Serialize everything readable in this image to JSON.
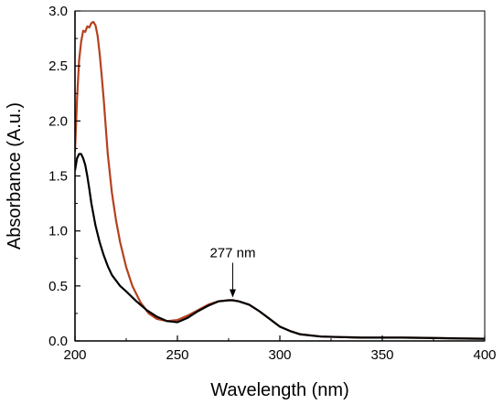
{
  "chart_data": {
    "type": "line",
    "title": "",
    "xlabel": "Wavelength (nm)",
    "ylabel": "Absorbance (A.u.)",
    "xlim": [
      200,
      400
    ],
    "ylim": [
      0.0,
      3.0
    ],
    "xticks": [
      200,
      250,
      300,
      350,
      400
    ],
    "xtick_labels": [
      "200",
      "250",
      "300",
      "350",
      "400"
    ],
    "yticks": [
      0.0,
      0.5,
      1.0,
      1.5,
      2.0,
      2.5,
      3.0
    ],
    "ytick_labels": [
      "0.0",
      "0.5",
      "1.0",
      "1.5",
      "2.0",
      "2.5",
      "3.0"
    ],
    "grid": false,
    "legend": "none",
    "annotation": {
      "text": "277 nm",
      "x": 277,
      "y": 0.37
    },
    "series": [
      {
        "color": "#b5401f",
        "x": [
          200,
          201,
          202,
          203,
          204,
          205,
          206,
          207,
          208,
          209,
          210,
          211,
          212,
          213,
          214,
          215,
          216,
          218,
          220,
          222,
          225,
          228,
          232,
          236,
          240,
          245,
          250,
          255,
          260,
          265,
          270,
          275,
          277,
          280,
          285,
          290,
          295,
          300,
          305,
          310,
          320,
          330,
          340,
          350,
          360,
          370,
          380,
          390,
          400
        ],
        "y": [
          1.72,
          2.2,
          2.55,
          2.72,
          2.82,
          2.81,
          2.86,
          2.85,
          2.89,
          2.9,
          2.87,
          2.78,
          2.62,
          2.42,
          2.2,
          1.95,
          1.7,
          1.35,
          1.1,
          0.9,
          0.67,
          0.5,
          0.35,
          0.25,
          0.2,
          0.18,
          0.19,
          0.23,
          0.28,
          0.33,
          0.36,
          0.37,
          0.37,
          0.36,
          0.33,
          0.27,
          0.2,
          0.13,
          0.09,
          0.06,
          0.04,
          0.035,
          0.03,
          0.03,
          0.03,
          0.028,
          0.025,
          0.022,
          0.02
        ]
      },
      {
        "color": "#000000",
        "x": [
          200,
          201,
          202,
          203,
          204,
          205,
          206,
          207,
          208,
          210,
          212,
          214,
          216,
          218,
          220,
          222,
          225,
          230,
          235,
          240,
          245,
          250,
          255,
          260,
          265,
          270,
          275,
          277,
          280,
          285,
          290,
          295,
          300,
          305,
          310,
          320,
          330,
          340,
          350,
          360,
          370,
          380,
          390,
          400
        ],
        "y": [
          1.55,
          1.66,
          1.7,
          1.7,
          1.66,
          1.6,
          1.5,
          1.38,
          1.25,
          1.05,
          0.9,
          0.78,
          0.68,
          0.6,
          0.55,
          0.5,
          0.45,
          0.36,
          0.28,
          0.22,
          0.18,
          0.17,
          0.21,
          0.27,
          0.32,
          0.36,
          0.37,
          0.37,
          0.36,
          0.33,
          0.27,
          0.2,
          0.13,
          0.09,
          0.06,
          0.04,
          0.035,
          0.03,
          0.03,
          0.03,
          0.028,
          0.025,
          0.022,
          0.02
        ]
      }
    ]
  }
}
